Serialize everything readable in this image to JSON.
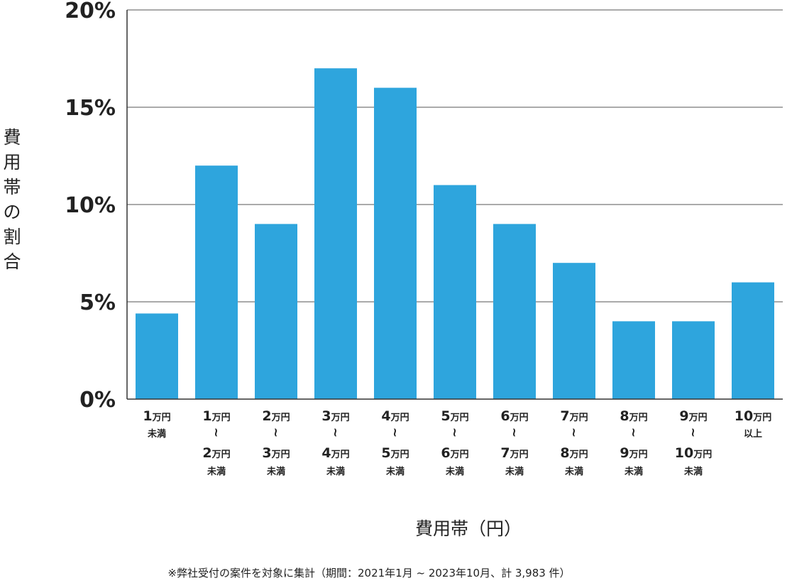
{
  "chart_data": {
    "type": "bar",
    "ylabel_chars": [
      "費",
      "用",
      "帯",
      "の",
      "割",
      "合"
    ],
    "xlabel": "費用帯（円）",
    "note": "※弊社受付の案件を対象に集計（期間：2021年1月 ~ 2023年10月、計 3,983 件）",
    "ylim": [
      0,
      20
    ],
    "yticks": [
      0,
      5,
      10,
      15,
      20
    ],
    "ytick_labels": [
      "0%",
      "5%",
      "10%",
      "15%",
      "20%"
    ],
    "grid": true,
    "bar_color": "#2ea5dd",
    "categories": [
      {
        "label": "1万円未満",
        "lines": [
          {
            "num": "1",
            "unit": "万円"
          },
          {
            "small": "未満"
          }
        ]
      },
      {
        "label": "1万円～2万円未満",
        "lines": [
          {
            "num": "1",
            "unit": "万円"
          },
          {
            "tilde": "〜"
          },
          {
            "num": "2",
            "unit": "万円"
          },
          {
            "small": "未満"
          }
        ]
      },
      {
        "label": "2万円～3万円未満",
        "lines": [
          {
            "num": "2",
            "unit": "万円"
          },
          {
            "tilde": "〜"
          },
          {
            "num": "3",
            "unit": "万円"
          },
          {
            "small": "未満"
          }
        ]
      },
      {
        "label": "3万円～4万円未満",
        "lines": [
          {
            "num": "3",
            "unit": "万円"
          },
          {
            "tilde": "〜"
          },
          {
            "num": "4",
            "unit": "万円"
          },
          {
            "small": "未満"
          }
        ]
      },
      {
        "label": "4万円～5万円未満",
        "lines": [
          {
            "num": "4",
            "unit": "万円"
          },
          {
            "tilde": "〜"
          },
          {
            "num": "5",
            "unit": "万円"
          },
          {
            "small": "未満"
          }
        ]
      },
      {
        "label": "5万円～6万円未満",
        "lines": [
          {
            "num": "5",
            "unit": "万円"
          },
          {
            "tilde": "〜"
          },
          {
            "num": "6",
            "unit": "万円"
          },
          {
            "small": "未満"
          }
        ]
      },
      {
        "label": "6万円～7万円未満",
        "lines": [
          {
            "num": "6",
            "unit": "万円"
          },
          {
            "tilde": "〜"
          },
          {
            "num": "7",
            "unit": "万円"
          },
          {
            "small": "未満"
          }
        ]
      },
      {
        "label": "7万円～8万円未満",
        "lines": [
          {
            "num": "7",
            "unit": "万円"
          },
          {
            "tilde": "〜"
          },
          {
            "num": "8",
            "unit": "万円"
          },
          {
            "small": "未満"
          }
        ]
      },
      {
        "label": "8万円～9万円未満",
        "lines": [
          {
            "num": "8",
            "unit": "万円"
          },
          {
            "tilde": "〜"
          },
          {
            "num": "9",
            "unit": "万円"
          },
          {
            "small": "未満"
          }
        ]
      },
      {
        "label": "9万円～10万円未満",
        "lines": [
          {
            "num": "9",
            "unit": "万円"
          },
          {
            "tilde": "〜"
          },
          {
            "num": "10",
            "unit": "万円"
          },
          {
            "small": "未満"
          }
        ]
      },
      {
        "label": "10万円以上",
        "lines": [
          {
            "num": "10",
            "unit": "万円"
          },
          {
            "small": "以上"
          }
        ]
      }
    ],
    "values": [
      4.4,
      12,
      9,
      17,
      16,
      11,
      9,
      7,
      4,
      4,
      6
    ]
  }
}
